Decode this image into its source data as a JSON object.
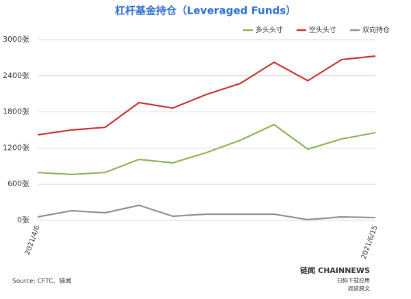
{
  "chart_data": {
    "type": "line",
    "title": "杠杆基金持仓（Leveraged Funds）",
    "categories": [
      "2021/4/6",
      null,
      null,
      null,
      null,
      null,
      null,
      null,
      null,
      null,
      "2021/6/15"
    ],
    "series": [
      {
        "name": "多头头寸",
        "color": "#8cb356",
        "values": [
          795,
          761,
          795,
          1011,
          955,
          1125,
          1330,
          1590,
          1182,
          1352,
          1455
        ]
      },
      {
        "name": "空头头寸",
        "color": "#c9302c",
        "values": [
          1420,
          1500,
          1545,
          1955,
          1864,
          2091,
          2273,
          2625,
          2318,
          2670,
          2727
        ]
      },
      {
        "name": "双向持仓",
        "color": "#8f8f8f",
        "values": [
          57,
          159,
          125,
          250,
          68,
          102,
          102,
          102,
          11,
          57,
          45
        ]
      }
    ],
    "ylim": [
      0,
      3000
    ],
    "yticks": [
      {
        "value": 0,
        "label": "0张"
      },
      {
        "value": 600,
        "label": "600张"
      },
      {
        "value": 1200,
        "label": "1200张"
      },
      {
        "value": 1800,
        "label": "1800张"
      },
      {
        "value": 2400,
        "label": "2400张"
      },
      {
        "value": 3000,
        "label": "3000张"
      }
    ],
    "grid": true,
    "legend": "top-right",
    "source": "Source: CFTC、链闻",
    "brand": {
      "name": "链闻 CHAINNEWS",
      "line1": "扫码下载应用",
      "line2": "阅读原文"
    }
  }
}
